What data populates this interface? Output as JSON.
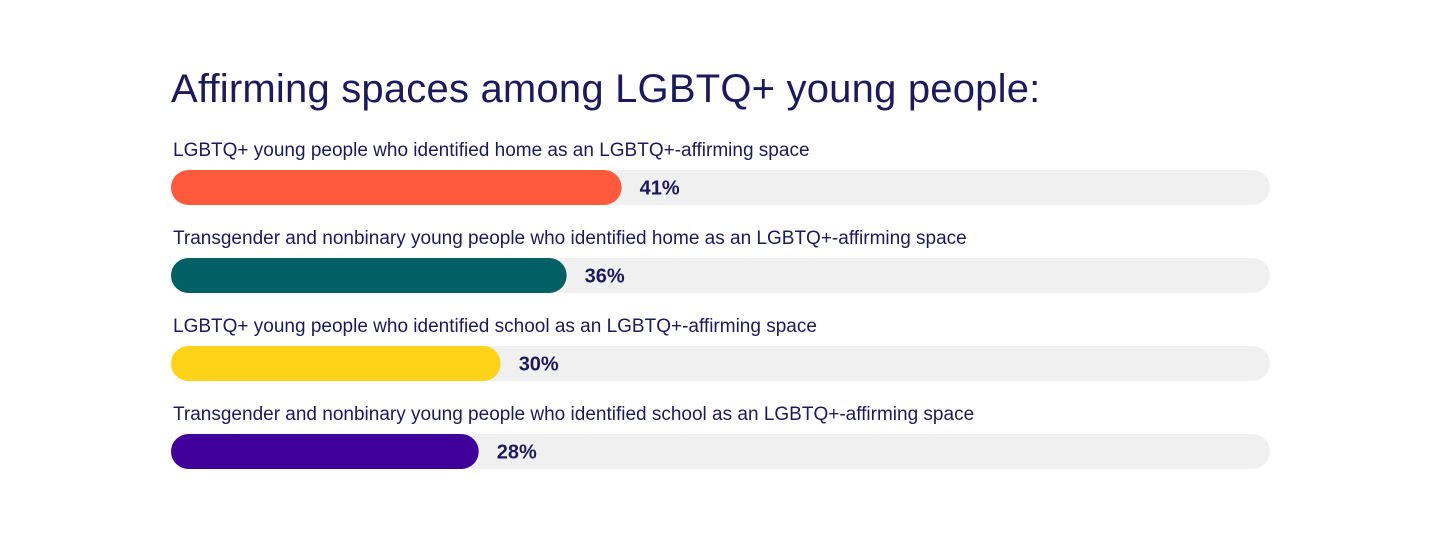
{
  "chart_data": {
    "type": "bar",
    "orientation": "horizontal",
    "title": "Affirming spaces among LGBTQ+ young people:",
    "xlim": [
      0,
      100
    ],
    "grid": false,
    "categories": [
      "LGBTQ+ young people who identified home as an LGBTQ+-affirming space",
      "Transgender and nonbinary young people who identified home as an LGBTQ+-affirming space",
      "LGBTQ+ young people who identified school as an LGBTQ+-affirming space",
      "Transgender and nonbinary young people who identified school as an LGBTQ+-affirming space"
    ],
    "values": [
      41,
      36,
      30,
      28
    ],
    "value_labels": [
      "41%",
      "36%",
      "30%",
      "28%"
    ],
    "colors": [
      "#ff5a3c",
      "#006064",
      "#ffd318",
      "#40009a"
    ],
    "track_color": "#f0f0f0"
  }
}
